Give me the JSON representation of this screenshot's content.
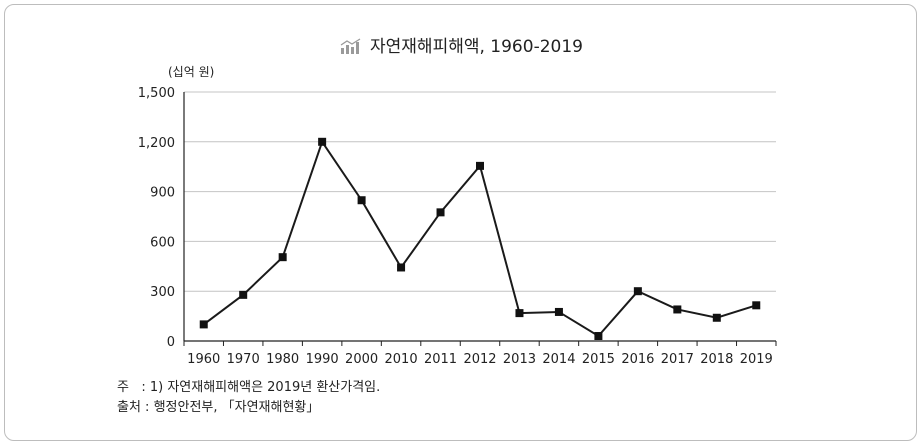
{
  "title": "자연재해피해액, 1960-2019",
  "icon": "bar-chart-trend-icon",
  "chart_data": {
    "type": "line",
    "title": "자연재해피해액, 1960-2019",
    "ylabel": "(십억 원)",
    "xlabel": "",
    "categories": [
      "1960",
      "1970",
      "1980",
      "1990",
      "2000",
      "2010",
      "2011",
      "2012",
      "2013",
      "2014",
      "2015",
      "2016",
      "2017",
      "2018",
      "2019"
    ],
    "values": [
      100,
      278,
      505,
      1200,
      848,
      443,
      775,
      1055,
      168,
      175,
      30,
      300,
      190,
      140,
      215
    ],
    "ylim": [
      0,
      1500
    ],
    "yticks": [
      "0",
      "300",
      "600",
      "900",
      "1,200",
      "1,500"
    ],
    "grid": true,
    "marker": "square",
    "line_color": "#1a1a1a"
  },
  "notes": {
    "note_label": "주   : 1) 자연재해피해액은 2019년 환산가격임.",
    "source_label": "출처 : 행정안전부, 「자연재해현황」"
  }
}
